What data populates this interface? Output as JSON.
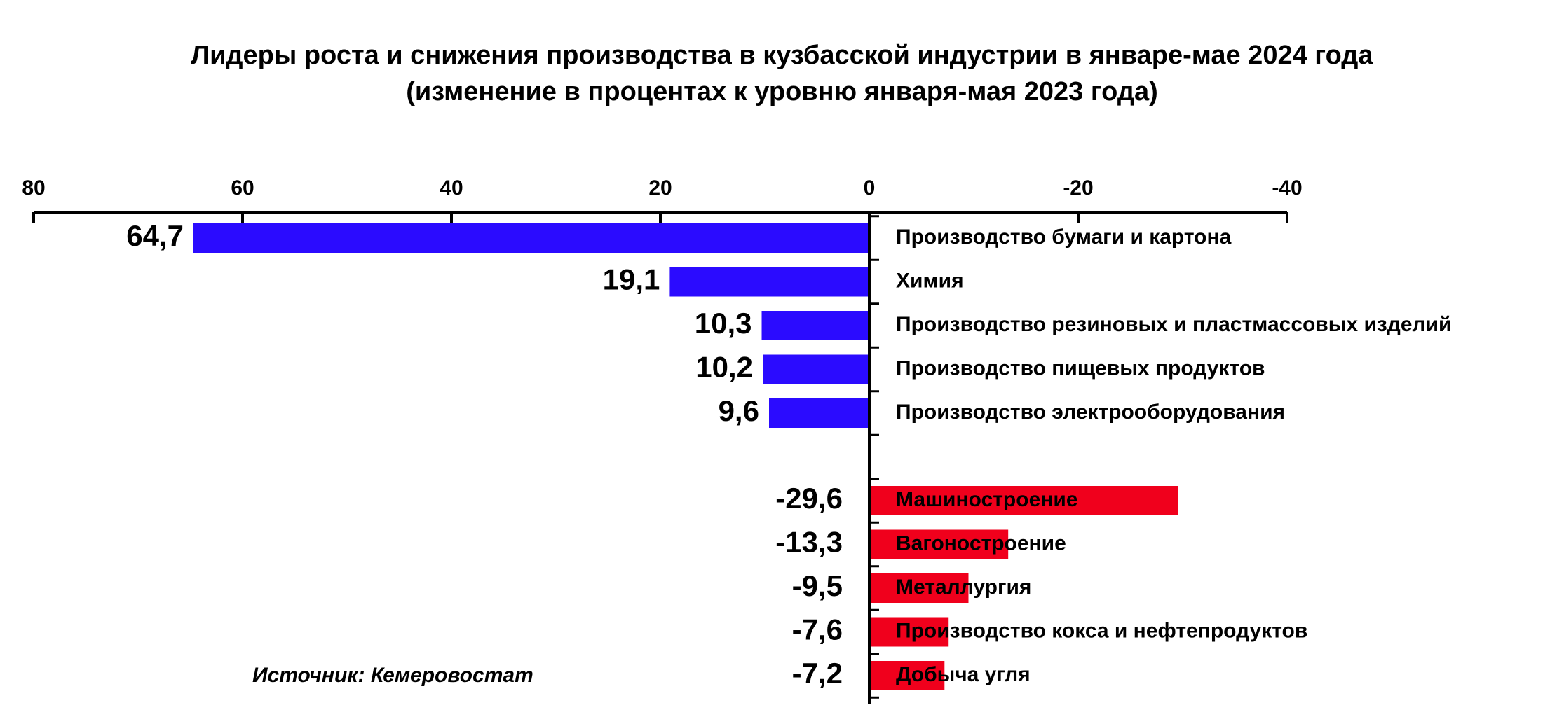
{
  "chart_data": {
    "type": "bar",
    "orientation": "horizontal",
    "title": "Лидеры роста и снижения производства в кузбасской индустрии в январе-мае 2024 года",
    "subtitle": "(изменение в процентах к уровню января-мая 2023 года)",
    "x_axis": {
      "reversed": true,
      "range": [
        80,
        -40
      ],
      "ticks": [
        80,
        60,
        40,
        20,
        0,
        -20,
        -40
      ],
      "tick_labels": [
        "80",
        "60",
        "40",
        "20",
        "0",
        "-20",
        "-40"
      ],
      "position": "top"
    },
    "grid": false,
    "legend": null,
    "groups": [
      {
        "name": "growth",
        "color": "#2B0BFF",
        "bars": [
          {
            "category": "Производство бумаги и картона",
            "value": 64.7,
            "label": "64,7"
          },
          {
            "category": "Химия",
            "value": 19.1,
            "label": "19,1"
          },
          {
            "category": "Производство резиновых и пластмассовых изделий",
            "value": 10.3,
            "label": "10,3"
          },
          {
            "category": "Производство пищевых продуктов",
            "value": 10.2,
            "label": "10,2"
          },
          {
            "category": "Производство электрооборудования",
            "value": 9.6,
            "label": "9,6"
          }
        ]
      },
      {
        "name": "decline",
        "color": "#F0001C",
        "bars": [
          {
            "category": "Машиностроение",
            "value": -29.6,
            "label": "-29,6"
          },
          {
            "category": "Вагоностроение",
            "value": -13.3,
            "label": "-13,3"
          },
          {
            "category": "Металлургия",
            "value": -9.5,
            "label": "-9,5"
          },
          {
            "category": "Производство кокса и нефтепродуктов",
            "value": -7.6,
            "label": "-7,6"
          },
          {
            "category": "Добыча угля",
            "value": -7.2,
            "label": "-7,2"
          }
        ]
      }
    ],
    "source_note": "Источник: Кемеровостат"
  },
  "colors": {
    "growth_bar": "#2B0BFF",
    "decline_bar": "#F0001C",
    "axis": "#000000",
    "text": "#000000"
  }
}
